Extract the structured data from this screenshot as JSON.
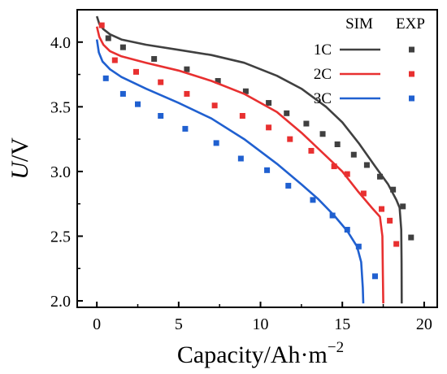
{
  "chart_data": {
    "type": "line",
    "title": "",
    "xlabel": "Capacity/Ah·m",
    "xlabel_superscript": "−2",
    "ylabel": "U/V",
    "ylabel_italic_part": "U",
    "ylabel_rest": "/V",
    "xlim": [
      -1.2,
      20.8
    ],
    "ylim": [
      1.95,
      4.25
    ],
    "xticks": [
      0,
      5,
      10,
      15,
      20
    ],
    "xtick_labels": [
      "0",
      "5",
      "10",
      "15",
      "20"
    ],
    "yticks": [
      2.0,
      2.5,
      3.0,
      3.5,
      4.0
    ],
    "ytick_labels": [
      "2.0",
      "2.5",
      "3.0",
      "3.5",
      "4.0"
    ],
    "grid": false,
    "legend_position": "top-right",
    "legend_headers": [
      "SIM",
      "EXP"
    ],
    "series": [
      {
        "name": "1C",
        "color": "#404040",
        "sim": [
          [
            0,
            4.2
          ],
          [
            0.15,
            4.14
          ],
          [
            0.4,
            4.1
          ],
          [
            0.8,
            4.06
          ],
          [
            1.5,
            4.02
          ],
          [
            3,
            3.98
          ],
          [
            5,
            3.94
          ],
          [
            7,
            3.9
          ],
          [
            9,
            3.84
          ],
          [
            11,
            3.74
          ],
          [
            12.5,
            3.64
          ],
          [
            14,
            3.5
          ],
          [
            15,
            3.38
          ],
          [
            16,
            3.22
          ],
          [
            17,
            3.04
          ],
          [
            17.8,
            2.9
          ],
          [
            18.3,
            2.78
          ],
          [
            18.5,
            2.72
          ],
          [
            18.6,
            2.55
          ],
          [
            18.62,
            2.3
          ],
          [
            18.63,
            1.98
          ]
        ],
        "exp": [
          [
            0.7,
            4.03
          ],
          [
            1.6,
            3.96
          ],
          [
            3.5,
            3.87
          ],
          [
            5.5,
            3.79
          ],
          [
            7.4,
            3.7
          ],
          [
            9.1,
            3.62
          ],
          [
            10.5,
            3.53
          ],
          [
            11.6,
            3.45
          ],
          [
            12.8,
            3.37
          ],
          [
            13.8,
            3.29
          ],
          [
            14.7,
            3.21
          ],
          [
            15.7,
            3.13
          ],
          [
            16.5,
            3.05
          ],
          [
            17.3,
            2.96
          ],
          [
            18.1,
            2.86
          ],
          [
            18.7,
            2.73
          ],
          [
            19.2,
            2.49
          ]
        ]
      },
      {
        "name": "2C",
        "color": "#e83030",
        "sim": [
          [
            0,
            4.12
          ],
          [
            0.15,
            4.04
          ],
          [
            0.4,
            3.98
          ],
          [
            0.8,
            3.93
          ],
          [
            1.5,
            3.89
          ],
          [
            3,
            3.84
          ],
          [
            5,
            3.78
          ],
          [
            7,
            3.7
          ],
          [
            9,
            3.6
          ],
          [
            11,
            3.46
          ],
          [
            12.5,
            3.3
          ],
          [
            14,
            3.12
          ],
          [
            15,
            3.0
          ],
          [
            16,
            2.84
          ],
          [
            16.8,
            2.72
          ],
          [
            17.3,
            2.65
          ],
          [
            17.45,
            2.5
          ],
          [
            17.48,
            2.2
          ],
          [
            17.5,
            1.98
          ]
        ],
        "exp": [
          [
            0.3,
            4.13
          ],
          [
            1.1,
            3.86
          ],
          [
            2.4,
            3.77
          ],
          [
            3.9,
            3.69
          ],
          [
            5.5,
            3.6
          ],
          [
            7.2,
            3.51
          ],
          [
            8.9,
            3.43
          ],
          [
            10.5,
            3.34
          ],
          [
            11.8,
            3.25
          ],
          [
            13.1,
            3.16
          ],
          [
            14.5,
            3.04
          ],
          [
            15.3,
            2.98
          ],
          [
            16.3,
            2.83
          ],
          [
            17.4,
            2.71
          ],
          [
            17.9,
            2.62
          ],
          [
            18.3,
            2.44
          ]
        ]
      },
      {
        "name": "3C",
        "color": "#2060d0",
        "sim": [
          [
            0,
            4.02
          ],
          [
            0.12,
            3.92
          ],
          [
            0.35,
            3.85
          ],
          [
            0.8,
            3.79
          ],
          [
            1.5,
            3.73
          ],
          [
            3,
            3.64
          ],
          [
            5,
            3.53
          ],
          [
            7,
            3.41
          ],
          [
            9,
            3.25
          ],
          [
            11,
            3.06
          ],
          [
            12.5,
            2.9
          ],
          [
            13.5,
            2.79
          ],
          [
            14.5,
            2.66
          ],
          [
            15.3,
            2.54
          ],
          [
            15.9,
            2.42
          ],
          [
            16.15,
            2.3
          ],
          [
            16.25,
            2.1
          ],
          [
            16.28,
            1.98
          ]
        ],
        "exp": [
          [
            0.55,
            3.72
          ],
          [
            1.6,
            3.6
          ],
          [
            2.5,
            3.52
          ],
          [
            3.9,
            3.43
          ],
          [
            5.4,
            3.33
          ],
          [
            7.3,
            3.22
          ],
          [
            8.8,
            3.1
          ],
          [
            10.4,
            3.01
          ],
          [
            11.7,
            2.89
          ],
          [
            13.2,
            2.78
          ],
          [
            14.4,
            2.66
          ],
          [
            15.3,
            2.55
          ],
          [
            16.0,
            2.42
          ],
          [
            17.0,
            2.19
          ]
        ]
      }
    ]
  }
}
